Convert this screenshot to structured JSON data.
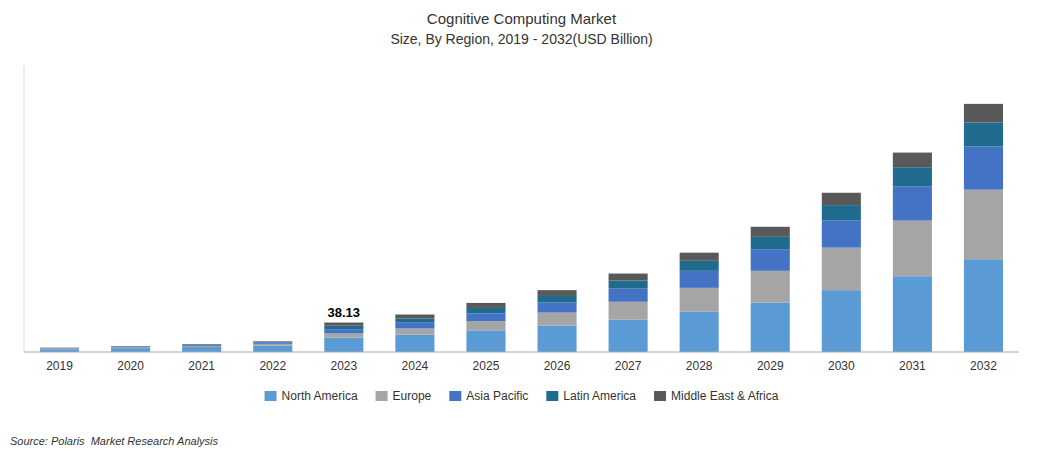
{
  "chart_data": {
    "type": "bar",
    "stacked": true,
    "title": "Cognitive Computing Market",
    "subtitle": "Size, By Region, 2019 - 2032(USD Billion)",
    "categories": [
      "2019",
      "2020",
      "2021",
      "2022",
      "2023",
      "2024",
      "2025",
      "2026",
      "2027",
      "2028",
      "2029",
      "2030",
      "2031",
      "2032"
    ],
    "series": [
      {
        "name": "North America",
        "color": "#5B9BD5",
        "values": [
          3.5,
          5.0,
          6.5,
          8.5,
          18.5,
          22.5,
          28.0,
          34.0,
          42.0,
          52.0,
          64.0,
          80.0,
          98.0,
          120.0
        ]
      },
      {
        "name": "Europe",
        "color": "#A5A5A5",
        "values": [
          0.8,
          1.0,
          1.4,
          2.0,
          5.5,
          8.0,
          12.0,
          17.0,
          23.0,
          31.0,
          41.0,
          55.0,
          72.0,
          90.0
        ]
      },
      {
        "name": "Asia Pacific",
        "color": "#4472C4",
        "values": [
          0.6,
          0.9,
          1.2,
          1.7,
          5.5,
          7.5,
          10.0,
          13.0,
          17.0,
          22.0,
          28.0,
          35.0,
          44.0,
          56.0
        ]
      },
      {
        "name": "Latin America",
        "color": "#1F6B8E",
        "values": [
          0.3,
          0.4,
          0.5,
          0.7,
          4.5,
          5.5,
          7.0,
          8.5,
          10.5,
          13.0,
          16.0,
          20.0,
          25.0,
          31.0
        ]
      },
      {
        "name": "Middle East & Africa",
        "color": "#595959",
        "values": [
          0.4,
          0.5,
          0.7,
          0.9,
          4.13,
          5.0,
          6.5,
          7.5,
          9.0,
          10.5,
          13.0,
          16.0,
          19.0,
          24.0
        ]
      }
    ],
    "annotations": [
      {
        "text": "38.13",
        "x": "2023",
        "y": 38.13
      }
    ],
    "source": "Source: Polaris  Market Research Analysis",
    "ylim": [
      0,
      370
    ],
    "tick_labels": "x",
    "grid": false,
    "legend": "bottom"
  }
}
